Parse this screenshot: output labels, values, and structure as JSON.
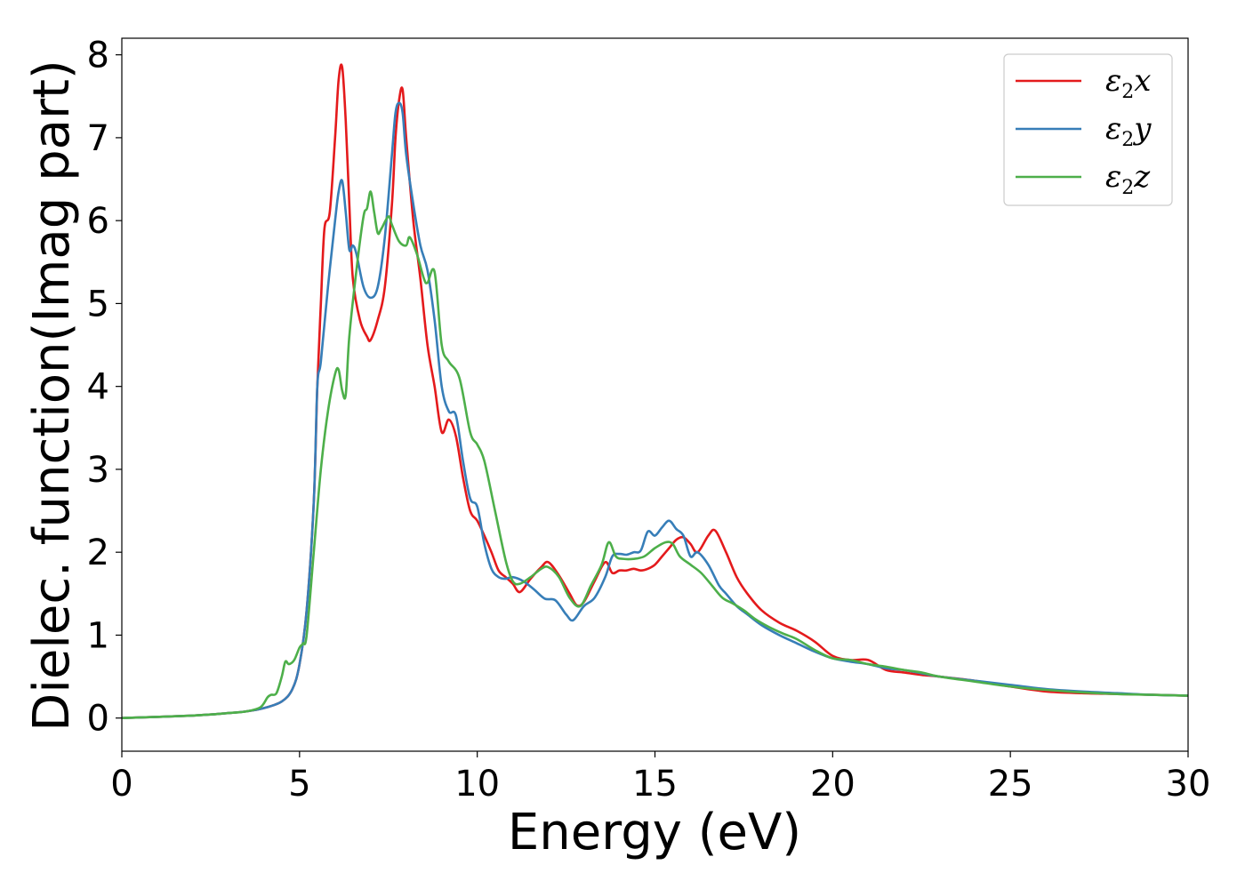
{
  "chart_data": {
    "type": "line",
    "xlabel": "Energy (eV)",
    "ylabel": "Dielec. function(Imag part)",
    "xlim": [
      0,
      30
    ],
    "ylim": [
      -0.4,
      8.2
    ],
    "xticks": [
      0,
      5,
      10,
      15,
      20,
      25,
      30
    ],
    "yticks": [
      0,
      1,
      2,
      3,
      4,
      5,
      6,
      7,
      8
    ],
    "grid": false,
    "legend_position": "top-right",
    "series": [
      {
        "name": "ε₂x",
        "legend_main": "ε",
        "legend_sub": "2",
        "legend_tail": "x",
        "color": "#e41a1c",
        "x": [
          0,
          2,
          3,
          3.5,
          4,
          4.5,
          4.8,
          5,
          5.2,
          5.4,
          5.5,
          5.6,
          5.7,
          5.85,
          6.0,
          6.1,
          6.2,
          6.3,
          6.4,
          6.5,
          6.7,
          6.9,
          7.0,
          7.2,
          7.4,
          7.6,
          7.7,
          7.8,
          7.9,
          8.0,
          8.2,
          8.4,
          8.6,
          8.8,
          9.0,
          9.2,
          9.4,
          9.6,
          9.8,
          10.0,
          10.2,
          10.4,
          10.6,
          10.8,
          11.0,
          11.2,
          11.5,
          11.8,
          12.0,
          12.3,
          12.6,
          12.8,
          13.0,
          13.3,
          13.6,
          13.8,
          14.0,
          14.2,
          14.4,
          14.6,
          14.8,
          15.0,
          15.2,
          15.4,
          15.6,
          15.8,
          16.0,
          16.2,
          16.5,
          16.7,
          17.0,
          17.3,
          17.6,
          18.0,
          18.5,
          19.0,
          19.5,
          20.0,
          20.5,
          21.0,
          21.5,
          22.0,
          22.5,
          23.0,
          24.0,
          25.0,
          26.0,
          27.0,
          28.0,
          29.0,
          30.0
        ],
        "y": [
          0,
          0.03,
          0.06,
          0.08,
          0.12,
          0.2,
          0.35,
          0.65,
          1.3,
          2.6,
          4.0,
          5.0,
          5.9,
          6.1,
          7.0,
          7.7,
          7.85,
          7.2,
          6.2,
          5.3,
          4.8,
          4.6,
          4.56,
          4.8,
          5.2,
          6.2,
          7.0,
          7.45,
          7.58,
          7.0,
          6.0,
          5.3,
          4.5,
          4.0,
          3.45,
          3.6,
          3.4,
          2.9,
          2.5,
          2.38,
          2.2,
          2.0,
          1.78,
          1.7,
          1.62,
          1.52,
          1.68,
          1.82,
          1.88,
          1.72,
          1.5,
          1.36,
          1.4,
          1.65,
          1.88,
          1.75,
          1.78,
          1.78,
          1.8,
          1.78,
          1.8,
          1.85,
          1.95,
          2.05,
          2.15,
          2.18,
          2.1,
          2.0,
          2.2,
          2.26,
          2.0,
          1.7,
          1.5,
          1.3,
          1.15,
          1.05,
          0.92,
          0.75,
          0.7,
          0.7,
          0.58,
          0.55,
          0.52,
          0.5,
          0.45,
          0.38,
          0.32,
          0.3,
          0.29,
          0.28,
          0.27
        ]
      },
      {
        "name": "ε₂y",
        "legend_main": "ε",
        "legend_sub": "2",
        "legend_tail": "y",
        "color": "#377eb8",
        "x": [
          0,
          2,
          3,
          3.5,
          4,
          4.5,
          4.8,
          5,
          5.2,
          5.4,
          5.5,
          5.6,
          5.8,
          6.0,
          6.1,
          6.2,
          6.3,
          6.4,
          6.5,
          6.6,
          6.8,
          7.0,
          7.2,
          7.4,
          7.6,
          7.7,
          7.8,
          7.9,
          8.0,
          8.2,
          8.4,
          8.6,
          8.8,
          9.0,
          9.2,
          9.4,
          9.6,
          9.8,
          10.0,
          10.2,
          10.4,
          10.6,
          10.8,
          11.0,
          11.3,
          11.6,
          11.9,
          12.2,
          12.5,
          12.7,
          13.0,
          13.3,
          13.6,
          13.8,
          14.0,
          14.2,
          14.4,
          14.6,
          14.8,
          15.0,
          15.2,
          15.4,
          15.6,
          15.8,
          16.0,
          16.2,
          16.5,
          16.8,
          17.0,
          17.3,
          17.6,
          18.0,
          18.5,
          19.0,
          19.5,
          20.0,
          20.5,
          21.0,
          21.5,
          22.0,
          22.5,
          23.0,
          24.0,
          25.0,
          26.0,
          27.0,
          28.0,
          29.0,
          30.0
        ],
        "y": [
          0,
          0.03,
          0.06,
          0.08,
          0.12,
          0.2,
          0.35,
          0.65,
          1.3,
          2.6,
          4.0,
          4.3,
          5.2,
          6.0,
          6.35,
          6.48,
          6.1,
          5.65,
          5.7,
          5.6,
          5.2,
          5.07,
          5.2,
          5.8,
          6.8,
          7.3,
          7.42,
          7.3,
          6.8,
          6.2,
          5.7,
          5.4,
          4.8,
          4.0,
          3.7,
          3.65,
          3.1,
          2.65,
          2.55,
          2.1,
          1.8,
          1.7,
          1.68,
          1.7,
          1.65,
          1.55,
          1.44,
          1.42,
          1.25,
          1.18,
          1.35,
          1.45,
          1.7,
          1.95,
          1.98,
          1.97,
          2.0,
          2.02,
          2.25,
          2.2,
          2.3,
          2.38,
          2.28,
          2.2,
          1.95,
          2.0,
          1.85,
          1.6,
          1.5,
          1.35,
          1.25,
          1.12,
          1.0,
          0.9,
          0.8,
          0.72,
          0.68,
          0.65,
          0.6,
          0.58,
          0.54,
          0.5,
          0.45,
          0.4,
          0.35,
          0.32,
          0.3,
          0.28,
          0.27
        ]
      },
      {
        "name": "ε₂z",
        "legend_main": "ε",
        "legend_sub": "2",
        "legend_tail": "z",
        "color": "#4daf4a",
        "x": [
          0,
          2,
          3,
          3.5,
          3.9,
          4.1,
          4.2,
          4.35,
          4.5,
          4.6,
          4.7,
          4.85,
          5.0,
          5.1,
          5.2,
          5.4,
          5.6,
          5.8,
          6.0,
          6.1,
          6.2,
          6.3,
          6.4,
          6.6,
          6.8,
          6.9,
          7.0,
          7.1,
          7.2,
          7.3,
          7.5,
          7.6,
          7.8,
          8.0,
          8.1,
          8.3,
          8.5,
          8.6,
          8.8,
          9.0,
          9.2,
          9.5,
          9.8,
          10.0,
          10.2,
          10.5,
          10.8,
          11.0,
          11.2,
          11.5,
          11.8,
          12.0,
          12.3,
          12.6,
          12.9,
          13.2,
          13.5,
          13.7,
          13.9,
          14.1,
          14.4,
          14.7,
          15.0,
          15.3,
          15.5,
          15.7,
          16.0,
          16.3,
          16.6,
          16.9,
          17.2,
          17.5,
          17.8,
          18.2,
          18.6,
          19.0,
          19.5,
          20.0,
          20.5,
          21.0,
          21.5,
          22.0,
          22.5,
          23.0,
          24.0,
          25.0,
          26.0,
          27.0,
          28.0,
          29.0,
          30.0
        ],
        "y": [
          0,
          0.03,
          0.06,
          0.08,
          0.13,
          0.25,
          0.28,
          0.3,
          0.5,
          0.68,
          0.65,
          0.7,
          0.85,
          0.9,
          1.0,
          2.0,
          3.0,
          3.7,
          4.15,
          4.2,
          3.95,
          3.9,
          4.6,
          5.4,
          6.05,
          6.15,
          6.35,
          6.1,
          5.85,
          5.9,
          6.05,
          5.95,
          5.75,
          5.7,
          5.8,
          5.6,
          5.3,
          5.25,
          5.38,
          4.5,
          4.3,
          4.1,
          3.45,
          3.3,
          3.1,
          2.5,
          1.9,
          1.65,
          1.62,
          1.7,
          1.8,
          1.82,
          1.7,
          1.45,
          1.35,
          1.6,
          1.85,
          2.12,
          1.95,
          1.92,
          1.92,
          1.95,
          2.05,
          2.12,
          2.1,
          1.95,
          1.85,
          1.75,
          1.6,
          1.45,
          1.38,
          1.3,
          1.2,
          1.1,
          1.02,
          0.95,
          0.82,
          0.72,
          0.7,
          0.65,
          0.62,
          0.58,
          0.55,
          0.5,
          0.44,
          0.38,
          0.34,
          0.31,
          0.29,
          0.28,
          0.27
        ]
      }
    ]
  }
}
